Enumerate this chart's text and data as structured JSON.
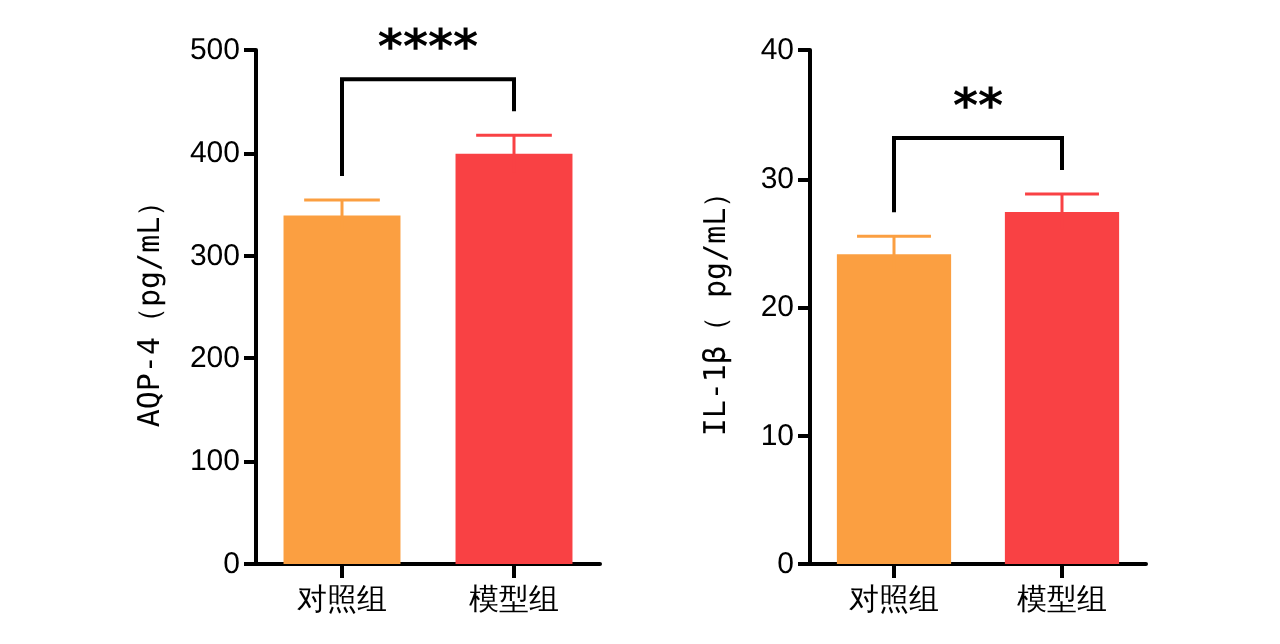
{
  "chart_data": [
    {
      "type": "bar",
      "ylabel": "AQP-4（pg/mL）",
      "categories": [
        "对照组",
        "模型组"
      ],
      "values": [
        339,
        399
      ],
      "errors": [
        15,
        18
      ],
      "colors": [
        "#fb9f41",
        "#f94144"
      ],
      "ylim": [
        0,
        500
      ],
      "yticks": [
        0,
        100,
        200,
        300,
        400,
        500
      ],
      "grid": false,
      "annotations": [
        "****"
      ]
    },
    {
      "type": "bar",
      "ylabel": "IL-1β（ pg/mL）",
      "categories": [
        "对照组",
        "模型组"
      ],
      "values": [
        24.1,
        27.4
      ],
      "errors": [
        1.4,
        1.4
      ],
      "colors": [
        "#fb9f41",
        "#f94144"
      ],
      "ylim": [
        0,
        40
      ],
      "yticks": [
        0,
        10,
        20,
        30,
        40
      ],
      "grid": false,
      "annotations": [
        "**"
      ]
    }
  ]
}
